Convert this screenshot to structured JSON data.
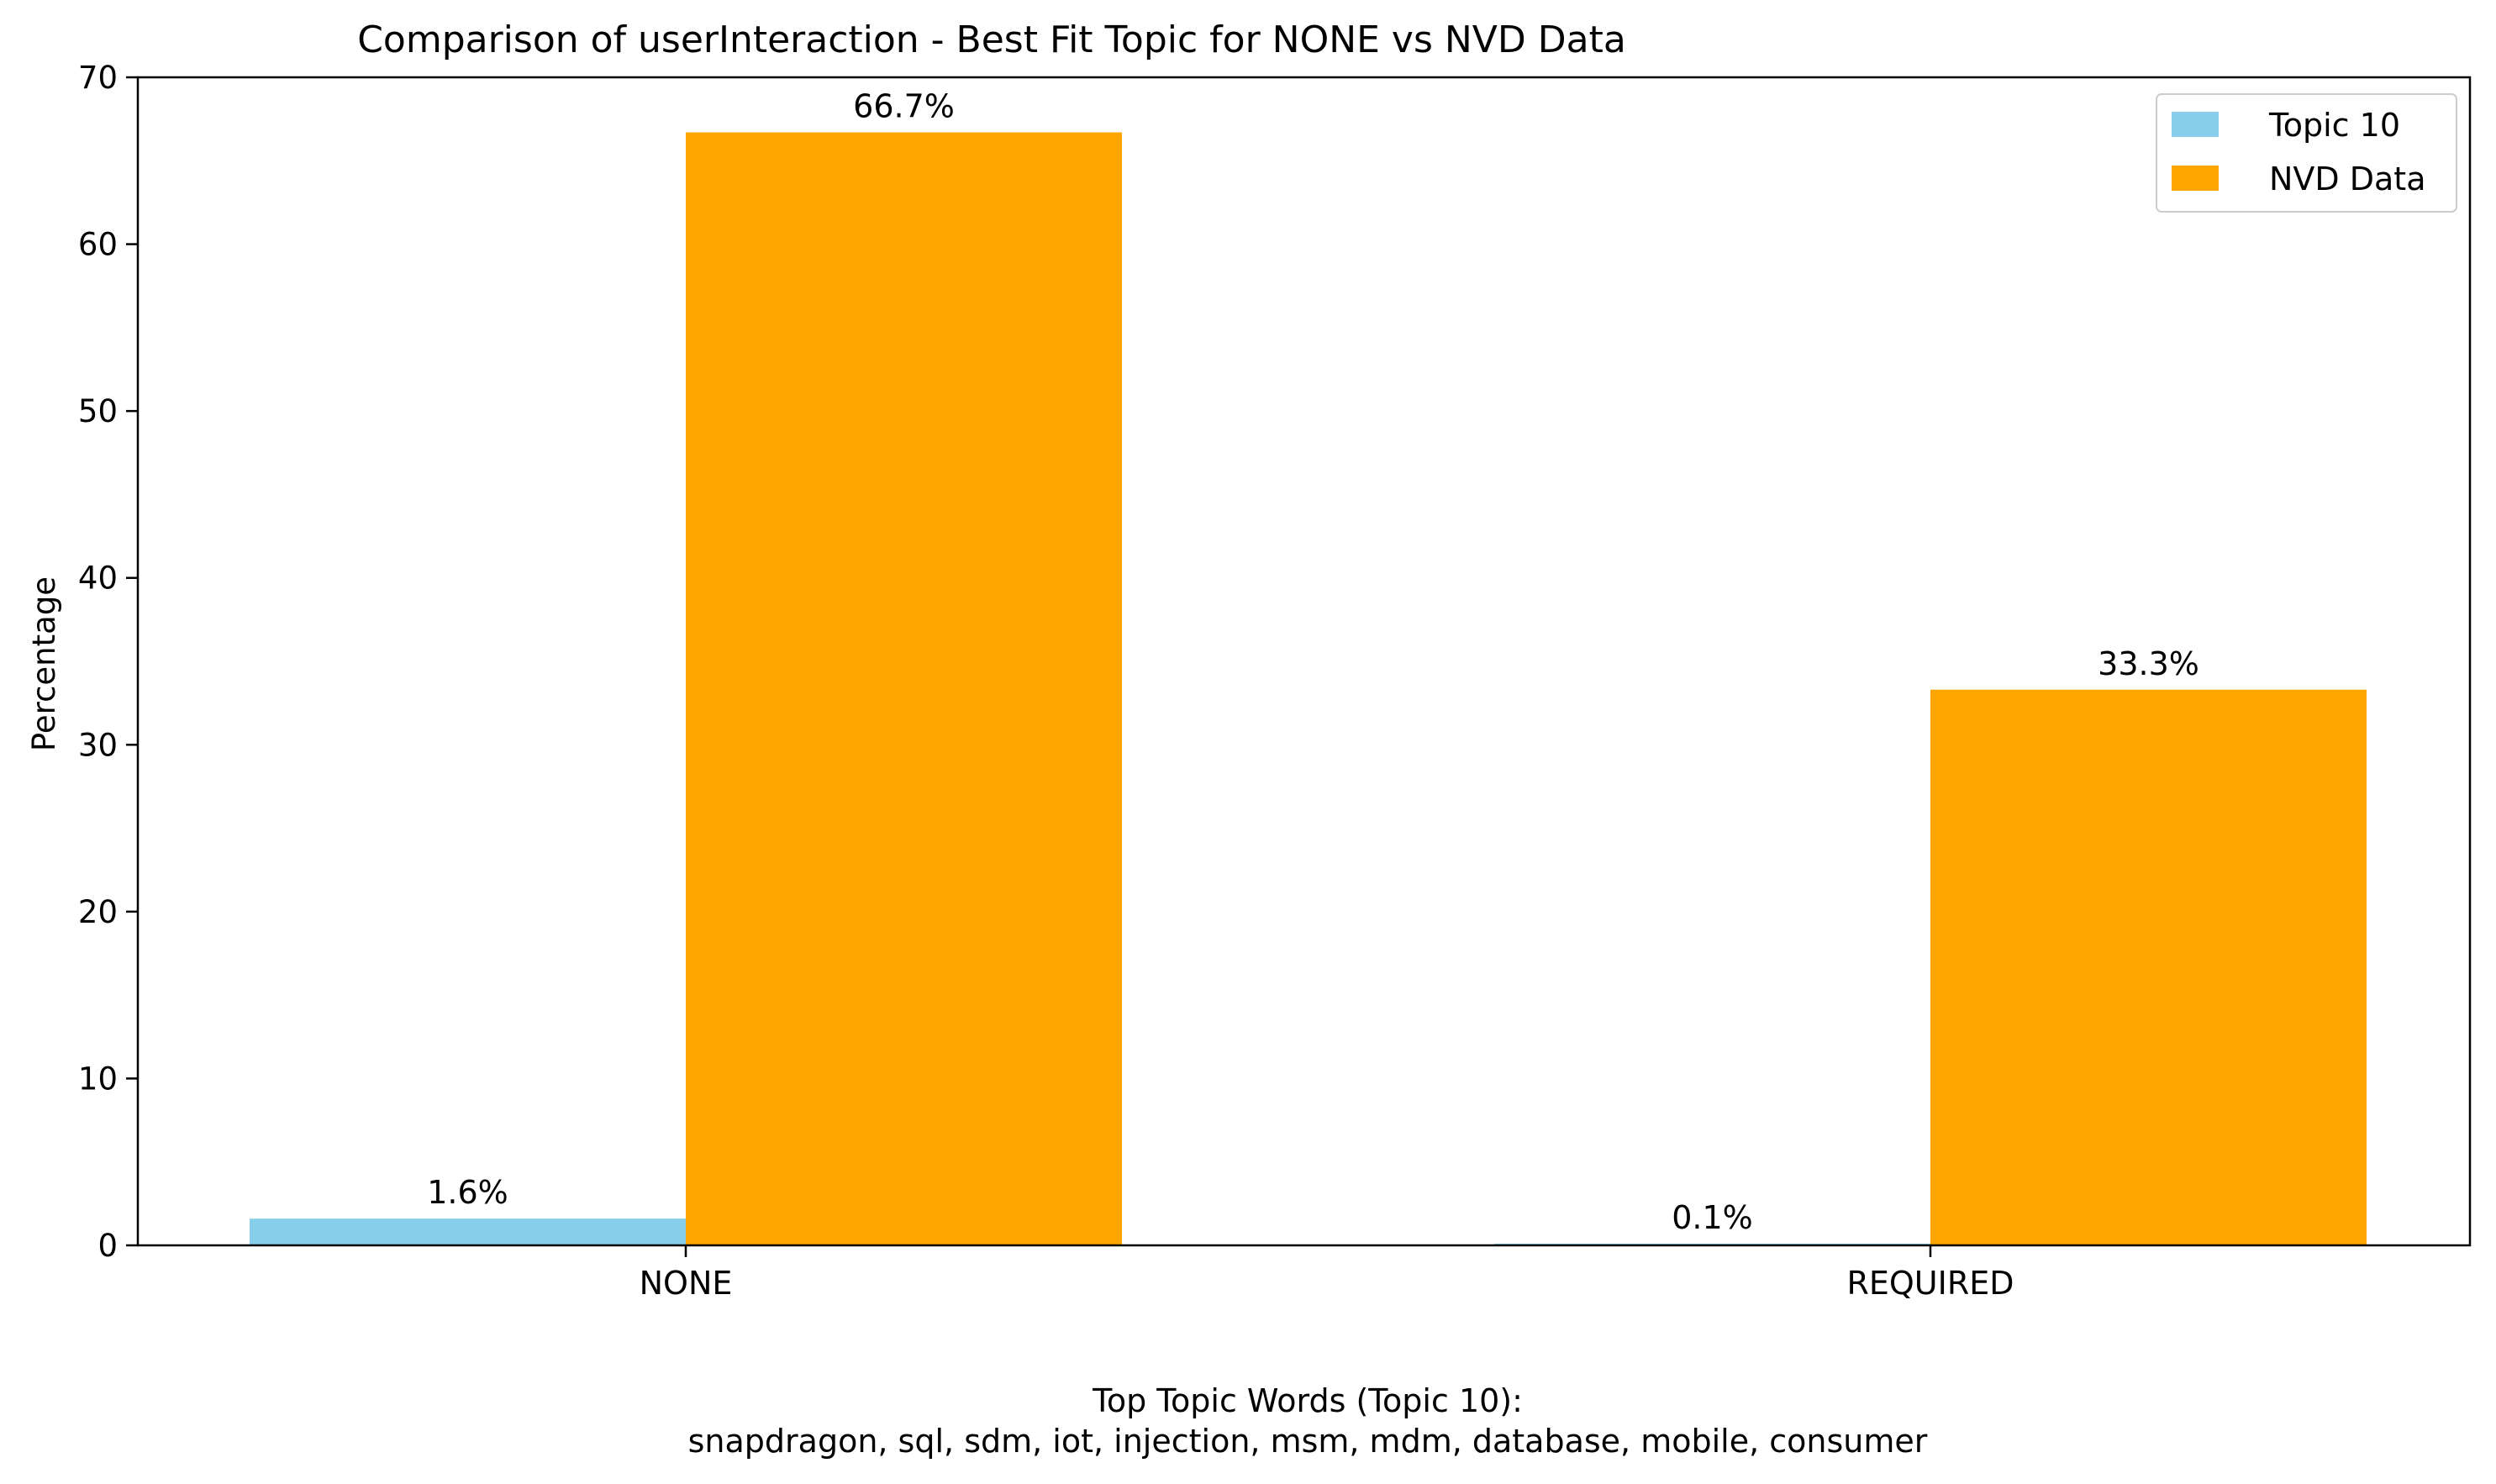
{
  "chart_data": {
    "type": "bar",
    "title": "Comparison of userInteraction - Best Fit Topic for NONE vs NVD Data",
    "xlabel": "",
    "ylabel": "Percentage",
    "categories": [
      "NONE",
      "REQUIRED"
    ],
    "series": [
      {
        "name": "Topic 10",
        "values": [
          1.6,
          0.1
        ],
        "labels": [
          "1.6%",
          "0.1%"
        ],
        "color": "#87CEEB"
      },
      {
        "name": "NVD Data",
        "values": [
          66.7,
          33.3
        ],
        "labels": [
          "66.7%",
          "33.3%"
        ],
        "color": "#FFA500"
      }
    ],
    "ylim": [
      0,
      70
    ],
    "yticks": [
      "0",
      "10",
      "20",
      "30",
      "40",
      "50",
      "60",
      "70"
    ],
    "grid": false,
    "legend_position": "top-right",
    "footnote": {
      "line1": "Top Topic Words (Topic 10):",
      "line2": "snapdragon,  sql,  sdm,  iot,  injection,  msm,  mdm,  database,  mobile,  consumer"
    }
  }
}
